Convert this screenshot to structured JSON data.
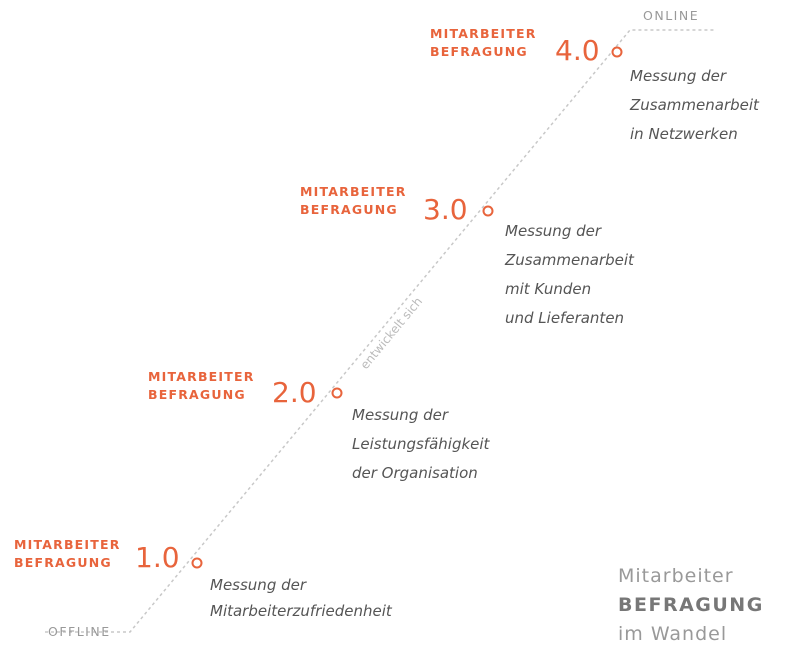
{
  "edges": {
    "offline": "OFFLINE",
    "online": "ONLINE",
    "trend": "entwickelt sich"
  },
  "stages": [
    {
      "label": [
        "MITARBEITER",
        "BEFRAGUNG"
      ],
      "version": "1.0",
      "description": [
        "Messung der",
        "Mitarbeiterzufriedenheit"
      ]
    },
    {
      "label": [
        "MITARBEITER",
        "BEFRAGUNG"
      ],
      "version": "2.0",
      "description": [
        "Messung der",
        "Leistungsfähigkeit",
        "der Organisation"
      ]
    },
    {
      "label": [
        "MITARBEITER",
        "BEFRAGUNG"
      ],
      "version": "3.0",
      "description": [
        "Messung der",
        "Zusammenarbeit",
        "mit Kunden",
        "und Lieferanten"
      ]
    },
    {
      "label": [
        "MITARBEITER",
        "BEFRAGUNG"
      ],
      "version": "4.0",
      "description": [
        "Messung der",
        "Zusammenarbeit",
        "in Netzwerken"
      ]
    }
  ],
  "title": [
    "Mitarbeiter",
    "BEFRAGUNG",
    "im Wandel"
  ]
}
